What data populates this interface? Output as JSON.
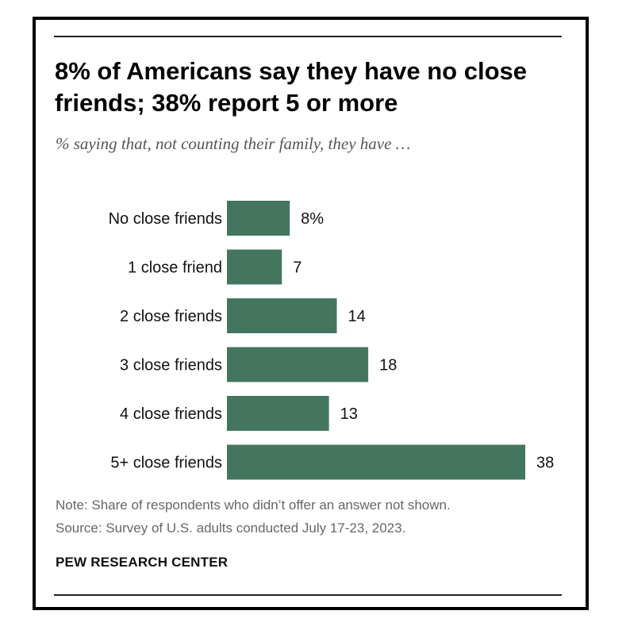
{
  "header": {
    "title": "8% of Americans say they have no close friends; 38% report 5 or more",
    "subtitle": "% saying that, not counting their family, they have …"
  },
  "footer": {
    "note": "Note: Share of respondents who didn’t offer an answer not shown.",
    "source": "Source: Survey of U.S. adults conducted July 17-23, 2023.",
    "brand": "PEW RESEARCH CENTER"
  },
  "chart_data": {
    "type": "bar",
    "orientation": "horizontal",
    "title": "8% of Americans say they have no close friends; 38% report 5 or more",
    "subtitle": "% saying that, not counting their family, they have …",
    "categories": [
      "No close friends",
      "1 close friend",
      "2 close friends",
      "3 close friends",
      "4 close friends",
      "5+ close friends"
    ],
    "values": [
      8,
      7,
      14,
      18,
      13,
      38
    ],
    "value_labels": [
      "8%",
      "7",
      "14",
      "18",
      "13",
      "38"
    ],
    "xlim": [
      0,
      38
    ],
    "grid": false,
    "legend": "none",
    "bar_color": "#44765F"
  }
}
